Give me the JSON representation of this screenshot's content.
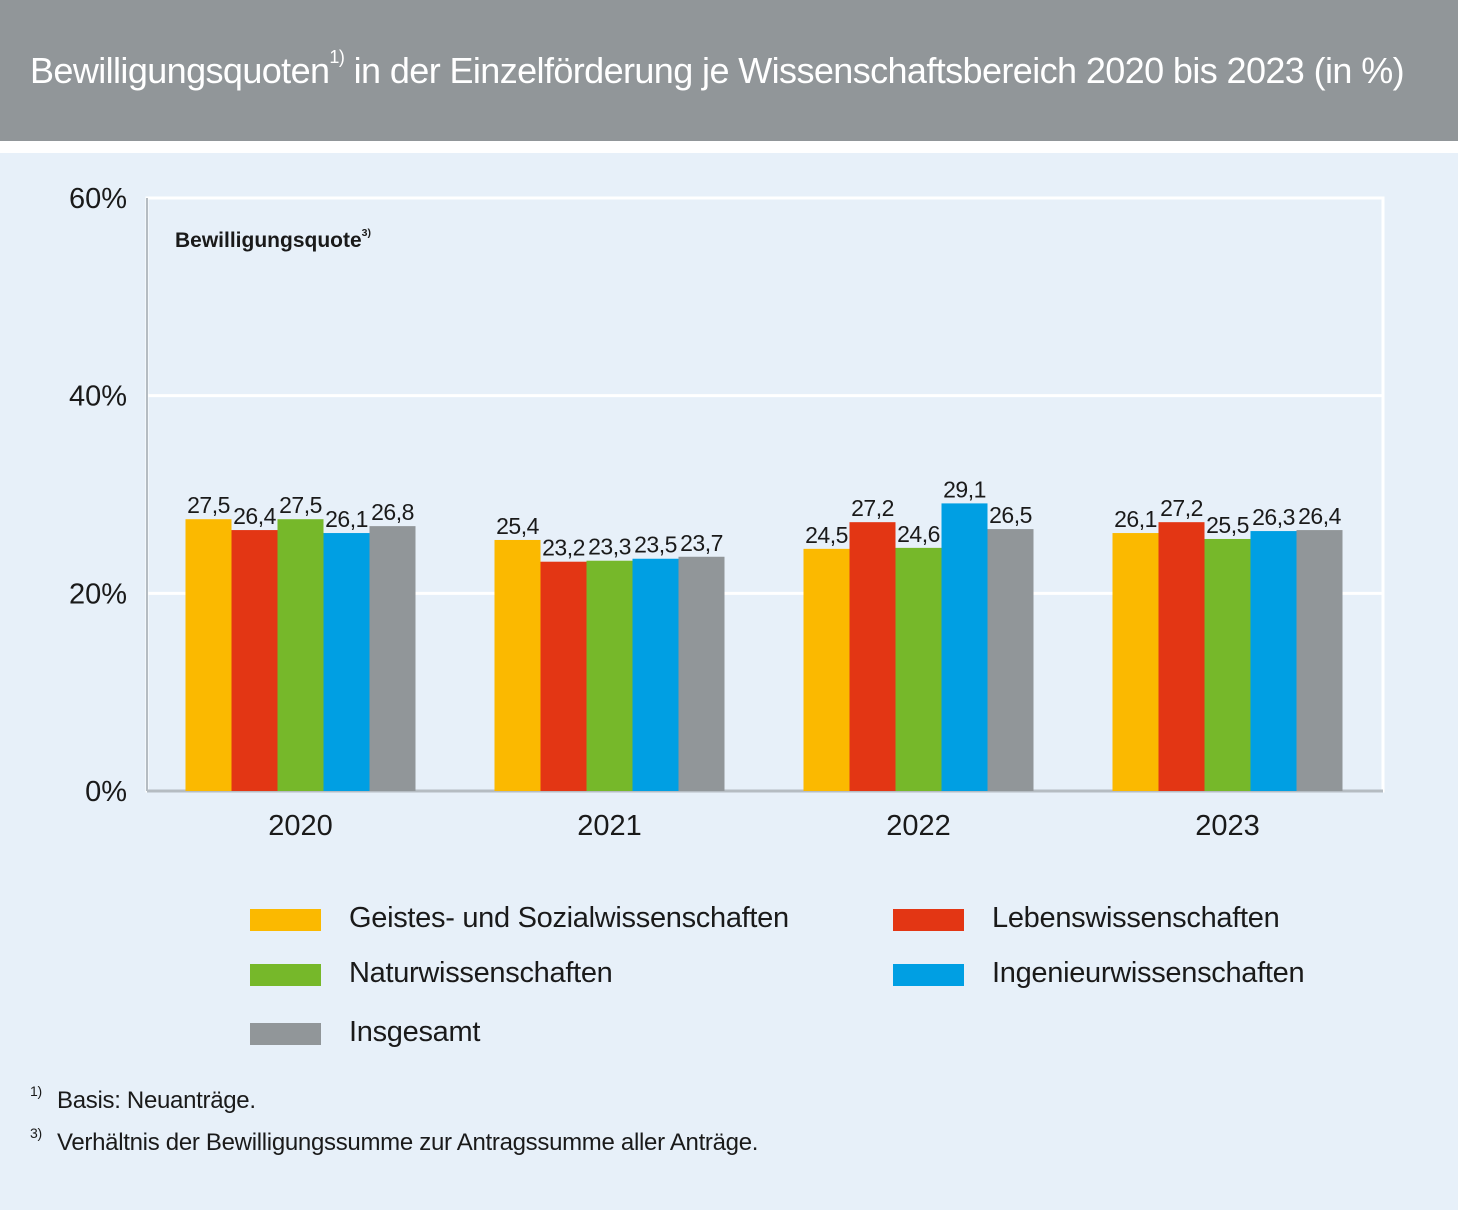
{
  "header": {
    "title_main": "Bewilligungsquoten",
    "title_sup": "1)",
    "title_rest": "in der Einzelförderung je Wissenschaftsbereich 2020 bis 2023 (in %)"
  },
  "chart_data": {
    "type": "bar",
    "plot_label": "Bewilligungsquote",
    "plot_label_sup": "3)",
    "categories": [
      "2020",
      "2021",
      "2022",
      "2023"
    ],
    "series": [
      {
        "name": "Geistes- und Sozialwissenschaften",
        "color": "#fbb900",
        "values": [
          27.5,
          25.4,
          24.5,
          26.1
        ],
        "labels": [
          "27,5",
          "25,4",
          "24,5",
          "26,1"
        ]
      },
      {
        "name": "Lebenswissenschaften",
        "color": "#e33614",
        "values": [
          26.4,
          23.2,
          27.2,
          27.2
        ],
        "labels": [
          "26,4",
          "23,2",
          "27,2",
          "27,2"
        ]
      },
      {
        "name": "Naturwissenschaften",
        "color": "#76b82a",
        "values": [
          27.5,
          23.3,
          24.6,
          25.5
        ],
        "labels": [
          "27,5",
          "23,3",
          "24,6",
          "25,5"
        ]
      },
      {
        "name": "Ingenieurwissenschaften",
        "color": "#009fe3",
        "values": [
          26.1,
          23.5,
          29.1,
          26.3
        ],
        "labels": [
          "26,1",
          "23,5",
          "29,1",
          "26,3"
        ]
      },
      {
        "name": "Insgesamt",
        "color": "#919699",
        "values": [
          26.8,
          23.7,
          26.5,
          26.4
        ],
        "labels": [
          "26,8",
          "23,7",
          "26,5",
          "26,4"
        ]
      }
    ],
    "ylim": [
      0,
      60
    ],
    "yticks": [
      0,
      20,
      40,
      60
    ],
    "ytick_labels": [
      "0%",
      "20%",
      "40%",
      "60%"
    ],
    "grid": true,
    "legend_position": "bottom"
  },
  "footnotes": [
    {
      "mark": "1)",
      "text": "Basis: Neuanträge."
    },
    {
      "mark": "3)",
      "text": "Verhältnis der Bewilligungssumme zur Antragssumme aller Anträge."
    }
  ]
}
